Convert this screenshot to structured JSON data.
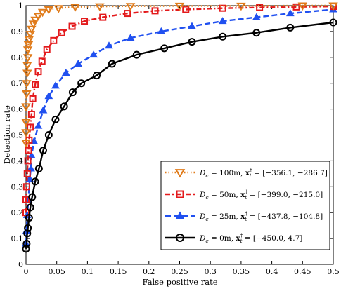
{
  "chart_data": {
    "type": "line",
    "xlabel": "False positive rate",
    "ylabel": "Detection rate",
    "xlim": [
      0,
      0.5
    ],
    "ylim": [
      0,
      1
    ],
    "x_ticks": [
      "0",
      "0.05",
      "0.1",
      "0.15",
      "0.2",
      "0.25",
      "0.3",
      "0.35",
      "0.4",
      "0.45",
      "0.5"
    ],
    "y_ticks": [
      "0",
      "0.1",
      "0.2",
      "0.3",
      "0.4",
      "0.5",
      "0.6",
      "0.7",
      "0.8",
      "0.9",
      "1"
    ],
    "grid": false,
    "legend_position": "lower-right",
    "series": [
      {
        "name": "D_c = 100m, x_t^† = [−356.1, −286.7]",
        "legend": {
          "pre": "D",
          "sub": "c",
          "mid": " = 100m, ",
          "vec": "x",
          "vsub": "t",
          "vsup": "†",
          "post": " = [−356.1, −286.7]"
        },
        "color": "#e07b1a",
        "line_style": "dotted",
        "marker": "triangle-down-open",
        "points": [
          [
            0.0,
            0.47
          ],
          [
            0.0,
            0.51
          ],
          [
            0.0,
            0.55
          ],
          [
            0.0,
            0.61
          ],
          [
            0.001,
            0.66
          ],
          [
            0.001,
            0.7
          ],
          [
            0.002,
            0.74
          ],
          [
            0.002,
            0.77
          ],
          [
            0.003,
            0.8
          ],
          [
            0.003,
            0.83
          ],
          [
            0.004,
            0.85
          ],
          [
            0.005,
            0.87
          ],
          [
            0.007,
            0.89
          ],
          [
            0.009,
            0.91
          ],
          [
            0.012,
            0.93
          ],
          [
            0.015,
            0.945
          ],
          [
            0.02,
            0.96
          ],
          [
            0.027,
            0.975
          ],
          [
            0.037,
            0.985
          ],
          [
            0.053,
            0.99
          ],
          [
            0.08,
            0.995
          ],
          [
            0.12,
            0.997
          ],
          [
            0.17,
            0.998
          ],
          [
            0.25,
            0.999
          ],
          [
            0.35,
            0.999
          ],
          [
            0.45,
            1.0
          ],
          [
            0.5,
            1.0
          ]
        ]
      },
      {
        "name": "D_c = 50m, x_t^† = [−399.0, −215.0]",
        "legend": {
          "pre": "D",
          "sub": "c",
          "mid": " = 50m, ",
          "vec": "x",
          "vsub": "t",
          "vsup": "†",
          "post": " = [−399.0, −215.0]"
        },
        "color": "#e31a1c",
        "line_style": "dash-dot",
        "marker": "square-open",
        "points": [
          [
            0.0,
            0.2
          ],
          [
            0.0,
            0.25
          ],
          [
            0.001,
            0.3
          ],
          [
            0.002,
            0.35
          ],
          [
            0.003,
            0.4
          ],
          [
            0.004,
            0.44
          ],
          [
            0.005,
            0.48
          ],
          [
            0.007,
            0.53
          ],
          [
            0.009,
            0.58
          ],
          [
            0.011,
            0.64
          ],
          [
            0.015,
            0.695
          ],
          [
            0.02,
            0.745
          ],
          [
            0.026,
            0.785
          ],
          [
            0.034,
            0.83
          ],
          [
            0.045,
            0.865
          ],
          [
            0.058,
            0.895
          ],
          [
            0.075,
            0.92
          ],
          [
            0.095,
            0.94
          ],
          [
            0.125,
            0.955
          ],
          [
            0.165,
            0.97
          ],
          [
            0.21,
            0.98
          ],
          [
            0.26,
            0.985
          ],
          [
            0.32,
            0.99
          ],
          [
            0.38,
            0.993
          ],
          [
            0.44,
            0.995
          ],
          [
            0.5,
            0.997
          ]
        ]
      },
      {
        "name": "D_c = 25m, x_t^† = [−437.8, −104.8]",
        "legend": {
          "pre": "D",
          "sub": "c",
          "mid": " = 25m, ",
          "vec": "x",
          "vsub": "t",
          "vsup": "†",
          "post": " = [−437.8, −104.8]"
        },
        "color": "#2050f0",
        "line_style": "dashed",
        "marker": "triangle-up-filled",
        "points": [
          [
            0.0,
            0.08
          ],
          [
            0.001,
            0.13
          ],
          [
            0.002,
            0.19
          ],
          [
            0.004,
            0.25
          ],
          [
            0.006,
            0.33
          ],
          [
            0.008,
            0.37
          ],
          [
            0.009,
            0.42
          ],
          [
            0.013,
            0.475
          ],
          [
            0.02,
            0.535
          ],
          [
            0.028,
            0.595
          ],
          [
            0.037,
            0.65
          ],
          [
            0.048,
            0.69
          ],
          [
            0.065,
            0.74
          ],
          [
            0.085,
            0.775
          ],
          [
            0.11,
            0.81
          ],
          [
            0.135,
            0.845
          ],
          [
            0.17,
            0.875
          ],
          [
            0.22,
            0.9
          ],
          [
            0.27,
            0.92
          ],
          [
            0.32,
            0.94
          ],
          [
            0.375,
            0.955
          ],
          [
            0.43,
            0.97
          ],
          [
            0.5,
            0.985
          ]
        ]
      },
      {
        "name": "D_c = 0m, x_t^† = [−450.0, 4.7]",
        "legend": {
          "pre": "D",
          "sub": "c",
          "mid": " = 0m, ",
          "vec": "x",
          "vsub": "t",
          "vsup": "†",
          "post": " = [−450.0, 4.7]"
        },
        "color": "#000000",
        "line_style": "solid",
        "marker": "circle-open",
        "points": [
          [
            0.0,
            0.06
          ],
          [
            0.001,
            0.08
          ],
          [
            0.002,
            0.12
          ],
          [
            0.003,
            0.14
          ],
          [
            0.005,
            0.18
          ],
          [
            0.007,
            0.22
          ],
          [
            0.01,
            0.26
          ],
          [
            0.015,
            0.32
          ],
          [
            0.021,
            0.37
          ],
          [
            0.028,
            0.44
          ],
          [
            0.037,
            0.5
          ],
          [
            0.048,
            0.56
          ],
          [
            0.062,
            0.61
          ],
          [
            0.076,
            0.665
          ],
          [
            0.09,
            0.7
          ],
          [
            0.115,
            0.73
          ],
          [
            0.14,
            0.775
          ],
          [
            0.18,
            0.81
          ],
          [
            0.225,
            0.835
          ],
          [
            0.27,
            0.86
          ],
          [
            0.32,
            0.88
          ],
          [
            0.375,
            0.895
          ],
          [
            0.43,
            0.915
          ],
          [
            0.5,
            0.935
          ]
        ]
      }
    ]
  }
}
